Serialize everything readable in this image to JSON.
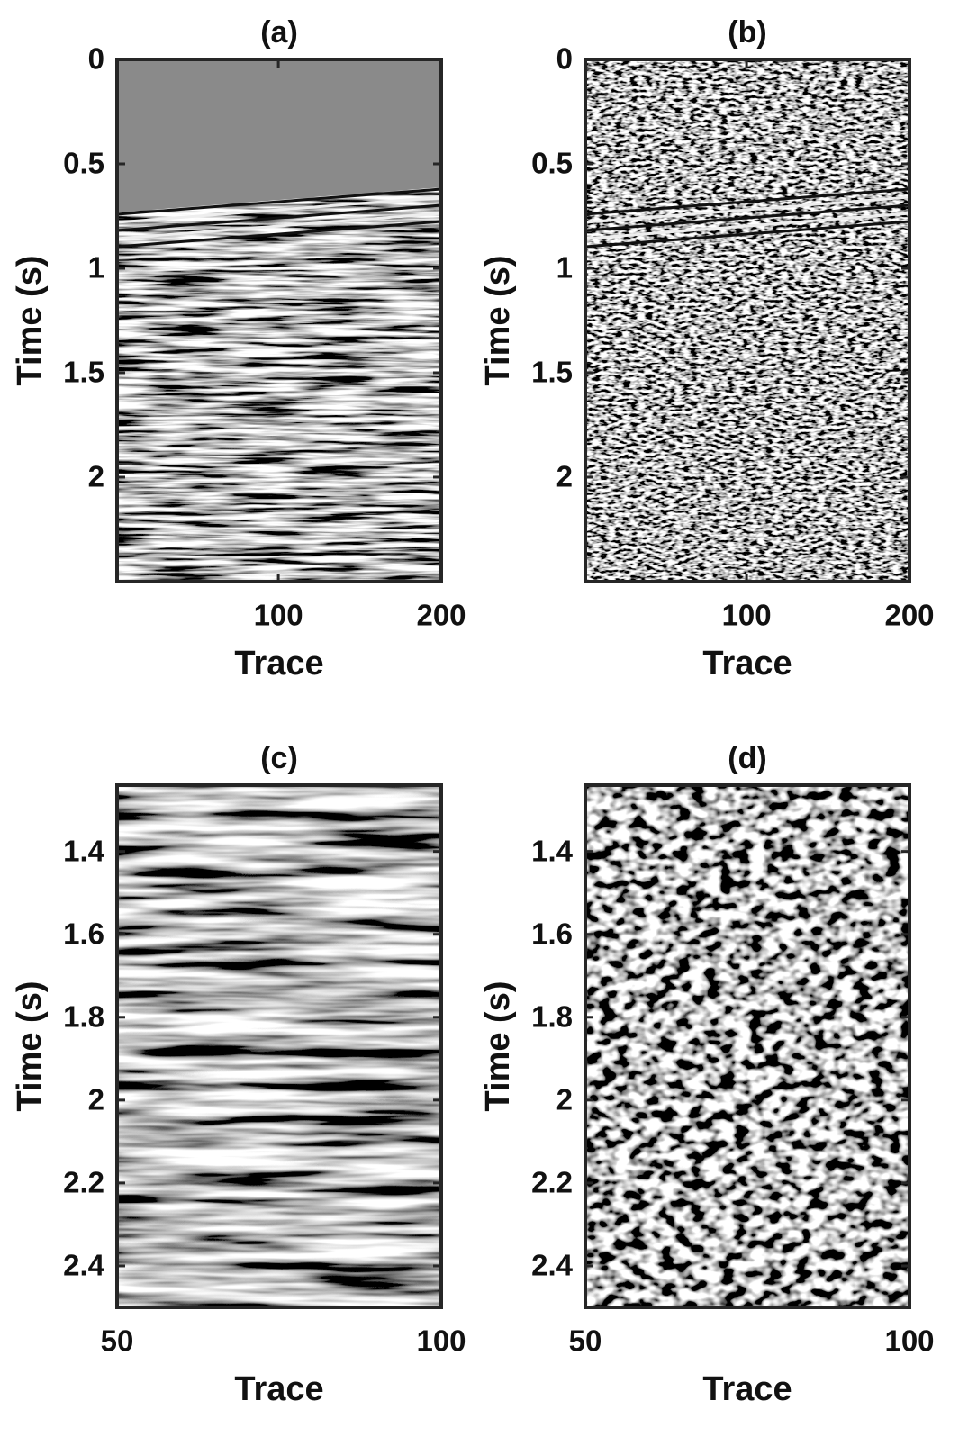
{
  "chart_data": [
    {
      "type": "image",
      "title": "(a)",
      "xlabel": "Trace",
      "ylabel": "Time (s)",
      "xlim": [
        1,
        200
      ],
      "ylim": [
        0,
        2.5
      ],
      "xticks": [
        100,
        200
      ],
      "yticks": [
        0,
        0.5,
        1,
        1.5,
        2
      ],
      "y_reversed": true
    },
    {
      "type": "image",
      "title": "(b)",
      "xlabel": "Trace",
      "ylabel": "Time (s)",
      "xlim": [
        1,
        200
      ],
      "ylim": [
        0,
        2.5
      ],
      "xticks": [
        100,
        200
      ],
      "yticks": [
        0,
        0.5,
        1,
        1.5,
        2
      ],
      "y_reversed": true
    },
    {
      "type": "image",
      "title": "(c)",
      "xlabel": "Trace",
      "ylabel": "Time (s)",
      "xlim": [
        50,
        100
      ],
      "ylim": [
        1.24,
        2.5
      ],
      "xticks": [
        50,
        100
      ],
      "yticks": [
        1.4,
        1.6,
        1.8,
        2,
        2.2,
        2.4
      ],
      "y_reversed": true
    },
    {
      "type": "image",
      "title": "(d)",
      "xlabel": "Trace",
      "ylabel": "Time (s)",
      "xlim": [
        50,
        100
      ],
      "ylim": [
        1.24,
        2.5
      ],
      "xticks": [
        50,
        100
      ],
      "yticks": [
        1.4,
        1.6,
        1.8,
        2,
        2.2,
        2.4
      ],
      "y_reversed": true
    }
  ]
}
